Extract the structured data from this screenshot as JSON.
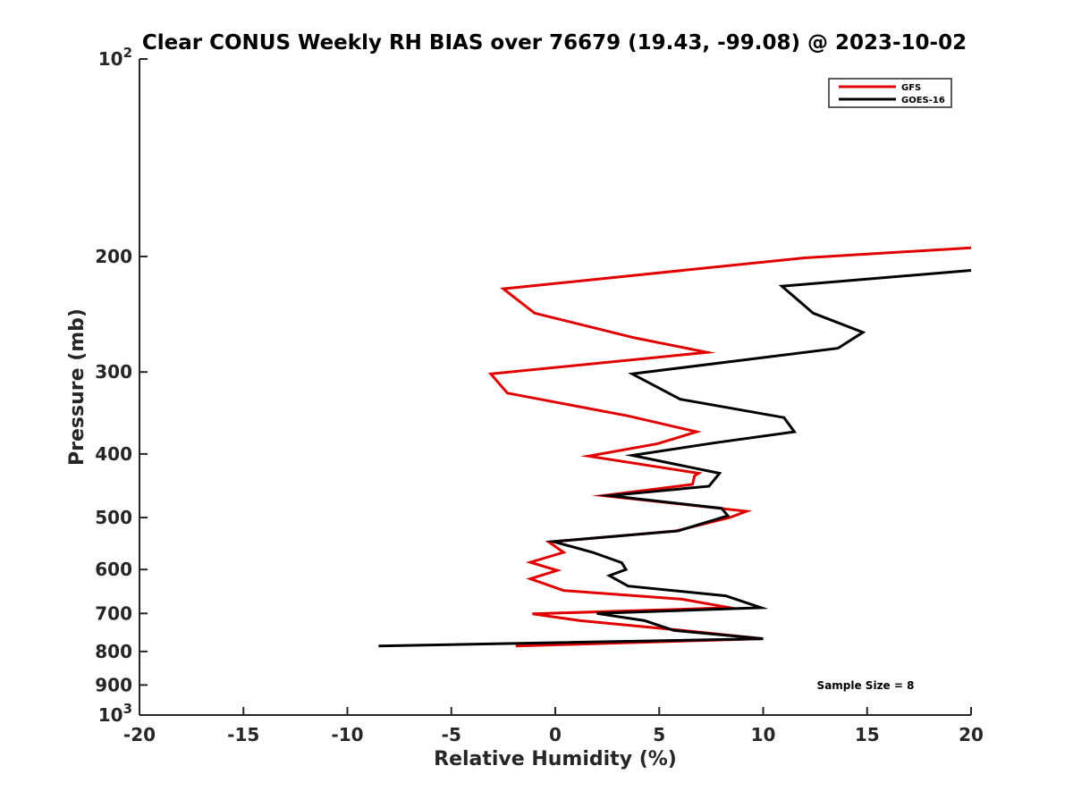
{
  "chart_data": {
    "type": "line",
    "title": "Clear CONUS Weekly RH BIAS over 76679 (19.43, -99.08) @ 2023-10-02",
    "xlabel": "Relative Humidity (%)",
    "ylabel": "Pressure (mb)",
    "xlim": [
      -20,
      20
    ],
    "ylim": [
      100,
      1000
    ],
    "y_scale": "log",
    "y_reversed": true,
    "x_ticks": [
      -20,
      -15,
      -10,
      -5,
      0,
      5,
      10,
      15,
      20
    ],
    "x_tick_labels": [
      "-20",
      "-15",
      "-10",
      "-5",
      "0",
      "5",
      "10",
      "15",
      "20"
    ],
    "y_ticks": [
      100,
      200,
      300,
      400,
      500,
      600,
      700,
      800,
      900,
      1000
    ],
    "y_tick_labels": [
      {
        "base": "10",
        "exp": "2"
      },
      {
        "base": "200",
        "exp": ""
      },
      {
        "base": "300",
        "exp": ""
      },
      {
        "base": "400",
        "exp": ""
      },
      {
        "base": "500",
        "exp": ""
      },
      {
        "base": "600",
        "exp": ""
      },
      {
        "base": "700",
        "exp": ""
      },
      {
        "base": "800",
        "exp": ""
      },
      {
        "base": "900",
        "exp": ""
      },
      {
        "base": "10",
        "exp": "3"
      }
    ],
    "grid": false,
    "legend_position": "top-right",
    "series": [
      {
        "name": "GFS",
        "color": "#e00000",
        "points": [
          [
            20,
            194
          ],
          [
            12,
            201
          ],
          [
            -2.5,
            224
          ],
          [
            -1,
            244
          ],
          [
            3.8,
            266
          ],
          [
            7.3,
            280
          ],
          [
            -3.1,
            302
          ],
          [
            -2.3,
            323
          ],
          [
            3.5,
            350
          ],
          [
            6.8,
            370
          ],
          [
            4.9,
            386
          ],
          [
            1.6,
            403
          ],
          [
            6.9,
            428
          ],
          [
            6.7,
            432
          ],
          [
            6.6,
            445
          ],
          [
            2.3,
            463
          ],
          [
            9.2,
            489
          ],
          [
            8.4,
            500
          ],
          [
            5.8,
            524
          ],
          [
            -0.3,
            545
          ],
          [
            0.4,
            565
          ],
          [
            -1.2,
            585
          ],
          [
            0.1,
            602
          ],
          [
            -1.2,
            620
          ],
          [
            0.4,
            646
          ],
          [
            6.1,
            666
          ],
          [
            8.4,
            686
          ],
          [
            -1.1,
            701
          ],
          [
            1.2,
            718
          ],
          [
            6.1,
            743
          ],
          [
            10,
            765
          ],
          [
            -1.9,
            785
          ]
        ]
      },
      {
        "name": "GOES-16",
        "color": "#000000",
        "points": [
          [
            20,
            210
          ],
          [
            10.9,
            222
          ],
          [
            12.4,
            244
          ],
          [
            14.8,
            261
          ],
          [
            13.6,
            276
          ],
          [
            3.7,
            302
          ],
          [
            6,
            330
          ],
          [
            11,
            352
          ],
          [
            11.5,
            370
          ],
          [
            7.6,
            385
          ],
          [
            3.7,
            402
          ],
          [
            7.9,
            428
          ],
          [
            7.4,
            448
          ],
          [
            2.6,
            463
          ],
          [
            8,
            484
          ],
          [
            8.3,
            497
          ],
          [
            5.9,
            524
          ],
          [
            -0.1,
            544
          ],
          [
            1.8,
            565
          ],
          [
            3.2,
            586
          ],
          [
            3.4,
            600
          ],
          [
            2.6,
            613
          ],
          [
            3.5,
            636
          ],
          [
            8.2,
            658
          ],
          [
            9.9,
            686
          ],
          [
            2,
            700
          ],
          [
            4.3,
            718
          ],
          [
            5.7,
            743
          ],
          [
            10,
            765
          ],
          [
            -8.5,
            785
          ]
        ]
      }
    ],
    "annotations": [
      {
        "text": "Sample Size = 8"
      }
    ]
  }
}
